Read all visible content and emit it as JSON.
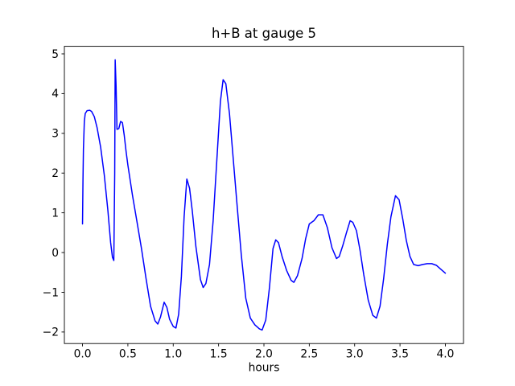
{
  "chart_data": {
    "type": "line",
    "title": "h+B at gauge 5",
    "xlabel": "hours",
    "ylabel": "",
    "xlim": [
      -0.2,
      4.2
    ],
    "ylim": [
      -2.29,
      5.19
    ],
    "xticks": [
      0.0,
      0.5,
      1.0,
      1.5,
      2.0,
      2.5,
      3.0,
      3.5,
      4.0
    ],
    "xtick_labels": [
      "0.0",
      "0.5",
      "1.0",
      "1.5",
      "2.0",
      "2.5",
      "3.0",
      "3.5",
      "4.0"
    ],
    "yticks": [
      -2,
      -1,
      0,
      1,
      2,
      3,
      4,
      5
    ],
    "ytick_labels": [
      "−2",
      "−1",
      "0",
      "1",
      "2",
      "3",
      "4",
      "5"
    ],
    "grid": false,
    "legend": "none",
    "line_color": "#0000ff",
    "axis_color": "#000000",
    "series": [
      {
        "name": "h+B",
        "x": [
          0.0,
          0.005,
          0.01,
          0.02,
          0.03,
          0.05,
          0.08,
          0.1,
          0.13,
          0.16,
          0.2,
          0.24,
          0.28,
          0.31,
          0.33,
          0.345,
          0.355,
          0.36,
          0.37,
          0.38,
          0.4,
          0.42,
          0.44,
          0.46,
          0.48,
          0.5,
          0.55,
          0.6,
          0.65,
          0.7,
          0.75,
          0.8,
          0.83,
          0.86,
          0.9,
          0.93,
          0.96,
          1.0,
          1.03,
          1.06,
          1.09,
          1.12,
          1.15,
          1.18,
          1.21,
          1.25,
          1.3,
          1.33,
          1.36,
          1.4,
          1.44,
          1.48,
          1.52,
          1.55,
          1.58,
          1.62,
          1.66,
          1.7,
          1.75,
          1.8,
          1.85,
          1.9,
          1.95,
          1.98,
          2.02,
          2.06,
          2.1,
          2.13,
          2.16,
          2.2,
          2.25,
          2.3,
          2.33,
          2.37,
          2.42,
          2.46,
          2.5,
          2.55,
          2.6,
          2.65,
          2.7,
          2.75,
          2.8,
          2.83,
          2.87,
          2.91,
          2.95,
          2.98,
          3.02,
          3.06,
          3.1,
          3.15,
          3.2,
          3.24,
          3.28,
          3.32,
          3.36,
          3.4,
          3.45,
          3.49,
          3.53,
          3.57,
          3.61,
          3.65,
          3.7,
          3.75,
          3.8,
          3.85,
          3.9,
          3.95,
          4.0
        ],
        "y": [
          0.72,
          1.8,
          2.6,
          3.3,
          3.5,
          3.57,
          3.58,
          3.55,
          3.42,
          3.15,
          2.65,
          1.95,
          1.05,
          0.25,
          -0.12,
          -0.2,
          2.0,
          4.85,
          4.2,
          3.1,
          3.12,
          3.3,
          3.27,
          2.95,
          2.55,
          2.2,
          1.45,
          0.78,
          0.1,
          -0.65,
          -1.35,
          -1.72,
          -1.8,
          -1.62,
          -1.25,
          -1.38,
          -1.68,
          -1.86,
          -1.9,
          -1.55,
          -0.6,
          0.9,
          1.85,
          1.62,
          1.05,
          0.15,
          -0.68,
          -0.88,
          -0.78,
          -0.3,
          0.8,
          2.3,
          3.8,
          4.35,
          4.25,
          3.5,
          2.4,
          1.3,
          -0.05,
          -1.15,
          -1.65,
          -1.82,
          -1.92,
          -1.95,
          -1.7,
          -0.9,
          0.1,
          0.32,
          0.25,
          -0.1,
          -0.45,
          -0.7,
          -0.75,
          -0.58,
          -0.15,
          0.35,
          0.72,
          0.8,
          0.95,
          0.95,
          0.62,
          0.12,
          -0.15,
          -0.1,
          0.18,
          0.5,
          0.8,
          0.76,
          0.55,
          0.05,
          -0.55,
          -1.2,
          -1.58,
          -1.65,
          -1.35,
          -0.65,
          0.2,
          0.9,
          1.43,
          1.33,
          0.85,
          0.3,
          -0.1,
          -0.3,
          -0.33,
          -0.3,
          -0.28,
          -0.28,
          -0.32,
          -0.42,
          -0.52
        ]
      }
    ]
  }
}
